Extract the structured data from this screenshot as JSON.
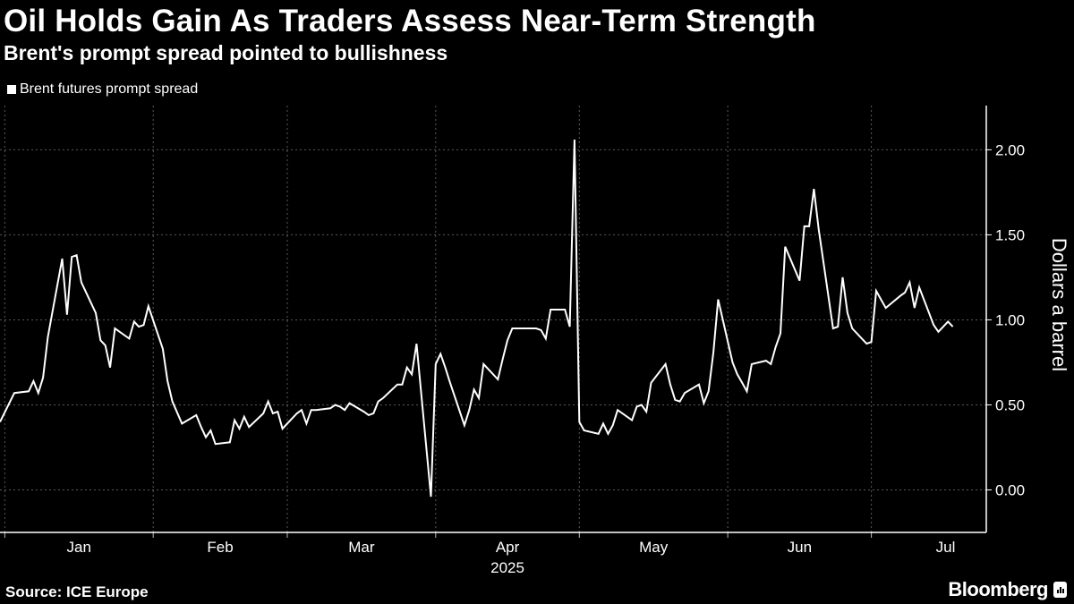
{
  "header": {
    "title": "Oil Holds Gain As Traders Assess Near-Term Strength",
    "subtitle": "Brent's prompt spread pointed to bullishness"
  },
  "footer": {
    "source": "Source: ICE Europe",
    "brand": "Bloomberg"
  },
  "colors": {
    "background": "#000000",
    "line": "#ffffff",
    "grid": "#5a5a5a"
  },
  "chart_data": {
    "type": "line",
    "title": "Oil Holds Gain As Traders Assess Near-Term Strength",
    "subtitle": "Brent's prompt spread pointed to bullishness",
    "legend_placement": "top-left",
    "ylabel": "Dollars a barrel",
    "y_axis_side": "right",
    "ylim": [
      -0.25,
      2.26
    ],
    "yticks": [
      0,
      0.5,
      1,
      1.5,
      2
    ],
    "ytick_labels": [
      "0.00",
      "0.50",
      "1.00",
      "1.50",
      "2.00"
    ],
    "xlim": [
      "2024-12-31",
      "2025-07-25"
    ],
    "xticks": [
      "2025-01-01",
      "2025-02-01",
      "2025-03-01",
      "2025-04-01",
      "2025-05-01",
      "2025-06-01",
      "2025-07-01"
    ],
    "xtick_labels": [
      "Jan",
      "Feb",
      "Mar",
      "Apr",
      "May",
      "Jun",
      "Jul"
    ],
    "xlabel_year": "2025",
    "grid": true,
    "series": [
      {
        "name": "Brent futures prompt spread",
        "color": "#ffffff",
        "points": [
          [
            "2024-12-31",
            0.4
          ],
          [
            "2025-01-03",
            0.57
          ],
          [
            "2025-01-06",
            0.58
          ],
          [
            "2025-01-07",
            0.64
          ],
          [
            "2025-01-08",
            0.57
          ],
          [
            "2025-01-09",
            0.66
          ],
          [
            "2025-01-10",
            0.9
          ],
          [
            "2025-01-13",
            1.36
          ],
          [
            "2025-01-14",
            1.03
          ],
          [
            "2025-01-15",
            1.37
          ],
          [
            "2025-01-16",
            1.38
          ],
          [
            "2025-01-17",
            1.22
          ],
          [
            "2025-01-20",
            1.04
          ],
          [
            "2025-01-21",
            0.88
          ],
          [
            "2025-01-22",
            0.85
          ],
          [
            "2025-01-23",
            0.72
          ],
          [
            "2025-01-24",
            0.95
          ],
          [
            "2025-01-27",
            0.89
          ],
          [
            "2025-01-28",
            0.99
          ],
          [
            "2025-01-29",
            0.96
          ],
          [
            "2025-01-30",
            0.97
          ],
          [
            "2025-01-31",
            1.08
          ],
          [
            "2025-02-03",
            0.83
          ],
          [
            "2025-02-04",
            0.64
          ],
          [
            "2025-02-05",
            0.52
          ],
          [
            "2025-02-07",
            0.39
          ],
          [
            "2025-02-10",
            0.44
          ],
          [
            "2025-02-11",
            0.37
          ],
          [
            "2025-02-12",
            0.31
          ],
          [
            "2025-02-13",
            0.35
          ],
          [
            "2025-02-14",
            0.27
          ],
          [
            "2025-02-17",
            0.28
          ],
          [
            "2025-02-18",
            0.41
          ],
          [
            "2025-02-19",
            0.36
          ],
          [
            "2025-02-20",
            0.43
          ],
          [
            "2025-02-21",
            0.37
          ],
          [
            "2025-02-24",
            0.45
          ],
          [
            "2025-02-25",
            0.52
          ],
          [
            "2025-02-26",
            0.45
          ],
          [
            "2025-02-27",
            0.46
          ],
          [
            "2025-02-28",
            0.36
          ],
          [
            "2025-03-03",
            0.45
          ],
          [
            "2025-03-04",
            0.47
          ],
          [
            "2025-03-05",
            0.39
          ],
          [
            "2025-03-06",
            0.47
          ],
          [
            "2025-03-07",
            0.47
          ],
          [
            "2025-03-10",
            0.48
          ],
          [
            "2025-03-11",
            0.5
          ],
          [
            "2025-03-12",
            0.49
          ],
          [
            "2025-03-13",
            0.47
          ],
          [
            "2025-03-14",
            0.51
          ],
          [
            "2025-03-17",
            0.46
          ],
          [
            "2025-03-18",
            0.44
          ],
          [
            "2025-03-19",
            0.45
          ],
          [
            "2025-03-20",
            0.52
          ],
          [
            "2025-03-21",
            0.54
          ],
          [
            "2025-03-24",
            0.62
          ],
          [
            "2025-03-25",
            0.62
          ],
          [
            "2025-03-26",
            0.72
          ],
          [
            "2025-03-27",
            0.68
          ],
          [
            "2025-03-28",
            0.86
          ],
          [
            "2025-03-31",
            -0.04
          ],
          [
            "2025-04-01",
            0.74
          ],
          [
            "2025-04-02",
            0.8
          ],
          [
            "2025-04-03",
            0.72
          ],
          [
            "2025-04-04",
            0.63
          ],
          [
            "2025-04-07",
            0.38
          ],
          [
            "2025-04-08",
            0.47
          ],
          [
            "2025-04-09",
            0.59
          ],
          [
            "2025-04-10",
            0.54
          ],
          [
            "2025-04-11",
            0.74
          ],
          [
            "2025-04-14",
            0.65
          ],
          [
            "2025-04-15",
            0.77
          ],
          [
            "2025-04-16",
            0.88
          ],
          [
            "2025-04-17",
            0.95
          ],
          [
            "2025-04-22",
            0.95
          ],
          [
            "2025-04-23",
            0.94
          ],
          [
            "2025-04-24",
            0.89
          ],
          [
            "2025-04-25",
            1.06
          ],
          [
            "2025-04-28",
            1.06
          ],
          [
            "2025-04-29",
            0.96
          ],
          [
            "2025-04-30",
            2.06
          ],
          [
            "2025-05-01",
            0.4
          ],
          [
            "2025-05-02",
            0.35
          ],
          [
            "2025-05-05",
            0.33
          ],
          [
            "2025-05-06",
            0.39
          ],
          [
            "2025-05-07",
            0.33
          ],
          [
            "2025-05-08",
            0.38
          ],
          [
            "2025-05-09",
            0.47
          ],
          [
            "2025-05-12",
            0.41
          ],
          [
            "2025-05-13",
            0.49
          ],
          [
            "2025-05-14",
            0.5
          ],
          [
            "2025-05-15",
            0.46
          ],
          [
            "2025-05-16",
            0.63
          ],
          [
            "2025-05-19",
            0.74
          ],
          [
            "2025-05-20",
            0.62
          ],
          [
            "2025-05-21",
            0.53
          ],
          [
            "2025-05-22",
            0.52
          ],
          [
            "2025-05-23",
            0.57
          ],
          [
            "2025-05-26",
            0.62
          ],
          [
            "2025-05-27",
            0.51
          ],
          [
            "2025-05-28",
            0.58
          ],
          [
            "2025-05-29",
            0.81
          ],
          [
            "2025-05-30",
            1.12
          ],
          [
            "2025-06-02",
            0.75
          ],
          [
            "2025-06-03",
            0.68
          ],
          [
            "2025-06-04",
            0.63
          ],
          [
            "2025-06-05",
            0.58
          ],
          [
            "2025-06-06",
            0.74
          ],
          [
            "2025-06-09",
            0.76
          ],
          [
            "2025-06-10",
            0.74
          ],
          [
            "2025-06-11",
            0.84
          ],
          [
            "2025-06-12",
            0.92
          ],
          [
            "2025-06-13",
            1.43
          ],
          [
            "2025-06-16",
            1.23
          ],
          [
            "2025-06-17",
            1.55
          ],
          [
            "2025-06-18",
            1.55
          ],
          [
            "2025-06-19",
            1.77
          ],
          [
            "2025-06-20",
            1.53
          ],
          [
            "2025-06-23",
            0.95
          ],
          [
            "2025-06-24",
            0.96
          ],
          [
            "2025-06-25",
            1.25
          ],
          [
            "2025-06-26",
            1.04
          ],
          [
            "2025-06-27",
            0.95
          ],
          [
            "2025-06-30",
            0.86
          ],
          [
            "2025-07-01",
            0.87
          ],
          [
            "2025-07-02",
            1.17
          ],
          [
            "2025-07-03",
            1.12
          ],
          [
            "2025-07-04",
            1.07
          ],
          [
            "2025-07-07",
            1.14
          ],
          [
            "2025-07-08",
            1.16
          ],
          [
            "2025-07-09",
            1.22
          ],
          [
            "2025-07-10",
            1.07
          ],
          [
            "2025-07-11",
            1.19
          ],
          [
            "2025-07-14",
            0.97
          ],
          [
            "2025-07-15",
            0.93
          ],
          [
            "2025-07-17",
            0.99
          ],
          [
            "2025-07-18",
            0.96
          ]
        ]
      }
    ]
  }
}
